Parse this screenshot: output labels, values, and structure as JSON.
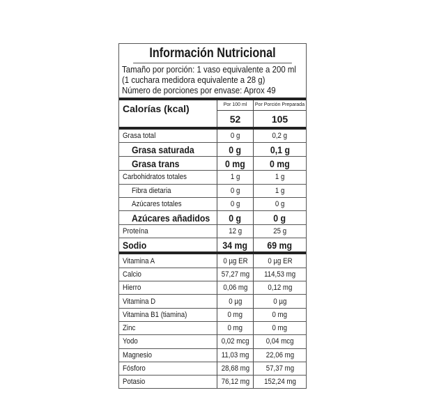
{
  "title": "Información Nutricional",
  "serving": [
    "Tamaño por porción: 1 vaso equivalente a 200 ml",
    "(1 cuchara medidora equivalente a 28 g)",
    "Número de porciones por envase: Aprox 49"
  ],
  "header": {
    "label": "Calorías (kcal)",
    "col1": "Por 100 ml",
    "col2": "Por Porción Preparada",
    "val1": "52",
    "val2": "105"
  },
  "rows": [
    {
      "name": "Grasa total",
      "v1": "0 g",
      "v2": "0,2 g"
    },
    {
      "name": "Grasa saturada",
      "v1": "0 g",
      "v2": "0,1 g",
      "bold": true,
      "indent": true
    },
    {
      "name": "Grasa trans",
      "v1": "0 mg",
      "v2": "0 mg",
      "bold": true,
      "indent": true
    },
    {
      "name": "Carbohidratos totales",
      "v1": "1 g",
      "v2": "1 g"
    },
    {
      "name": "Fibra dietaria",
      "v1": "0 g",
      "v2": "1 g",
      "indent": true
    },
    {
      "name": "Azúcares totales",
      "v1": "0 g",
      "v2": "0 g",
      "indent": true
    },
    {
      "name": "Azúcares añadidos",
      "v1": "0 g",
      "v2": "0 g",
      "bold": true,
      "indent": true
    },
    {
      "name": "Proteína",
      "v1": "12 g",
      "v2": "25 g"
    },
    {
      "name": "Sodio",
      "v1": "34 mg",
      "v2": "69 mg",
      "bold": true,
      "thick": true
    },
    {
      "name": "Vitamina A",
      "v1": "0 µg ER",
      "v2": "0 µg ER"
    },
    {
      "name": "Calcio",
      "v1": "57,27 mg",
      "v2": "114,53 mg"
    },
    {
      "name": "Hierro",
      "v1": "0,06 mg",
      "v2": "0,12 mg"
    },
    {
      "name": "Vitamina D",
      "v1": "0 µg",
      "v2": "0 µg"
    },
    {
      "name": "Vitamina B1 (tiamina)",
      "v1": "0 mg",
      "v2": "0 mg"
    },
    {
      "name": "Zinc",
      "v1": "0 mg",
      "v2": "0 mg"
    },
    {
      "name": "Yodo",
      "v1": "0,02 mcg",
      "v2": "0,04 mcg"
    },
    {
      "name": "Magnesio",
      "v1": "11,03 mg",
      "v2": "22,06 mg"
    },
    {
      "name": "Fósforo",
      "v1": "28,68 mg",
      "v2": "57,37 mg"
    },
    {
      "name": "Potasio",
      "v1": "76,12 mg",
      "v2": "152,24 mg"
    }
  ]
}
